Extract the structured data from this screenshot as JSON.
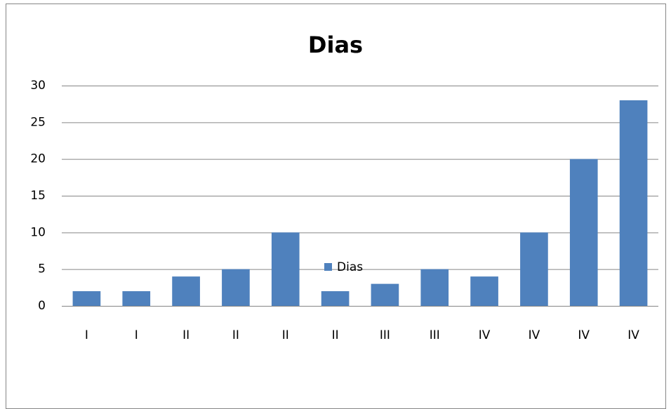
{
  "chart_data": {
    "type": "bar",
    "title": "Dias",
    "categories": [
      "I",
      "I",
      "II",
      "II",
      "II",
      "II",
      "III",
      "III",
      "IV",
      "IV",
      "IV",
      "IV"
    ],
    "series": [
      {
        "name": "Dias",
        "color": "#4f81bd",
        "values": [
          2,
          2,
          4,
          5,
          10,
          2,
          3,
          5,
          4,
          10,
          20,
          28
        ]
      }
    ],
    "ylim": [
      0,
      30
    ],
    "yticks": [
      0,
      5,
      10,
      15,
      20,
      25,
      30
    ],
    "grid": true,
    "legend": "bottom"
  }
}
